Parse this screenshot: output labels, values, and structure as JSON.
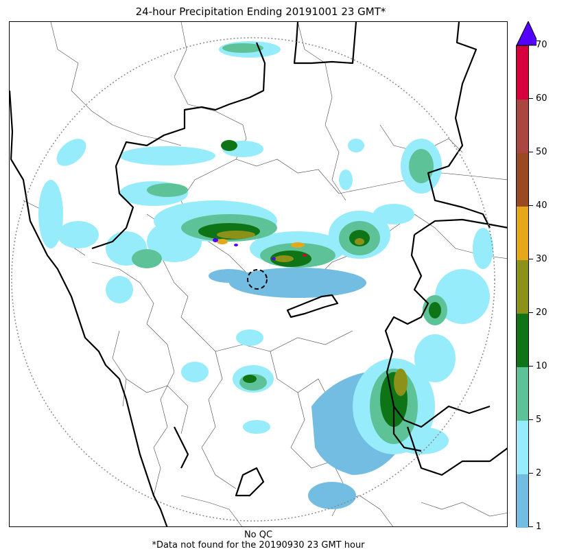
{
  "title": "24-hour Precipitation Ending 20191001 23 GMT*",
  "footer": {
    "line1": "No QC",
    "line2": "*Data not found for the 20190930 23 GMT hour"
  },
  "colorbar": {
    "levels": [
      1,
      2,
      5,
      10,
      20,
      30,
      40,
      50,
      60,
      70
    ],
    "tick_labels": [
      "1",
      "2",
      "5",
      "10",
      "20",
      "30",
      "40",
      "50",
      "60",
      "70"
    ],
    "colors": [
      "#74bde2",
      "#96ecfb",
      "#5ec298",
      "#0f7416",
      "#8b9119",
      "#e5a81a",
      "#9a4a23",
      "#a8463f",
      "#d6003e"
    ],
    "extend_color": "#5300ff"
  },
  "map": {
    "range_ring": true,
    "radar_site_marker": "dashed-circle"
  }
}
